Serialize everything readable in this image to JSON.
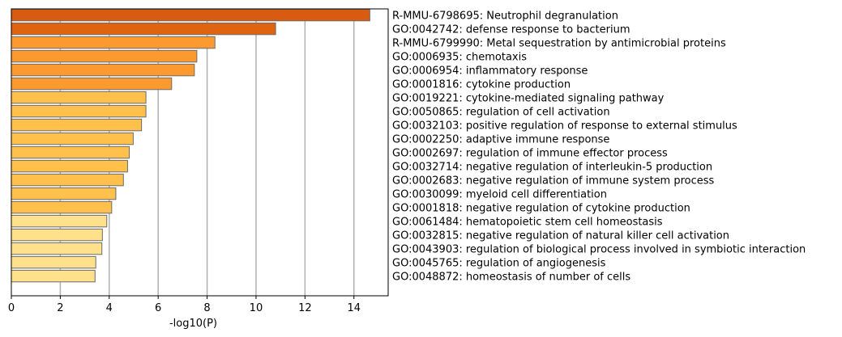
{
  "chart_data": {
    "type": "bar",
    "orientation": "horizontal",
    "xlabel": "-log10(P)",
    "xlim": [
      0,
      15.4
    ],
    "xticks": [
      0,
      2,
      4,
      6,
      8,
      10,
      12,
      14
    ],
    "grid": "vertical",
    "categories": [
      "R-MMU-6798695: Neutrophil degranulation",
      "GO:0042742: defense response to bacterium",
      "R-MMU-6799990: Metal sequestration by antimicrobial proteins",
      "GO:0006935: chemotaxis",
      "GO:0006954: inflammatory response",
      "GO:0001816: cytokine production",
      "GO:0019221: cytokine-mediated signaling pathway",
      "GO:0050865: regulation of cell activation",
      "GO:0032103: positive regulation of response to external stimulus",
      "GO:0002250: adaptive immune response",
      "GO:0002697: regulation of immune effector process",
      "GO:0032714: negative regulation of interleukin-5 production",
      "GO:0002683: negative regulation of immune system process",
      "GO:0030099: myeloid cell differentiation",
      "GO:0001818: negative regulation of cytokine production",
      "GO:0061484: hematopoietic stem cell homeostasis",
      "GO:0032815: negative regulation of natural killer cell activation",
      "GO:0043903: regulation of biological process involved in symbiotic interaction",
      "GO:0045765: regulation of angiogenesis",
      "GO:0048872: homeostasis of number of cells"
    ],
    "values": [
      14.65,
      10.8,
      8.32,
      7.58,
      7.48,
      6.55,
      5.5,
      5.5,
      5.32,
      4.98,
      4.82,
      4.75,
      4.58,
      4.27,
      4.1,
      3.9,
      3.72,
      3.7,
      3.45,
      3.42
    ],
    "colors": [
      "#d95b12",
      "#e0640f",
      "#fd9a2f",
      "#fd9a2f",
      "#fd9a2f",
      "#fd9a2f",
      "#ffc04c",
      "#ffc04c",
      "#ffc04c",
      "#ffc04c",
      "#ffc04c",
      "#ffc04c",
      "#ffc04c",
      "#ffc04c",
      "#ffc04c",
      "#ffe08b",
      "#ffe08b",
      "#ffe08b",
      "#ffe08b",
      "#ffe08b"
    ]
  }
}
